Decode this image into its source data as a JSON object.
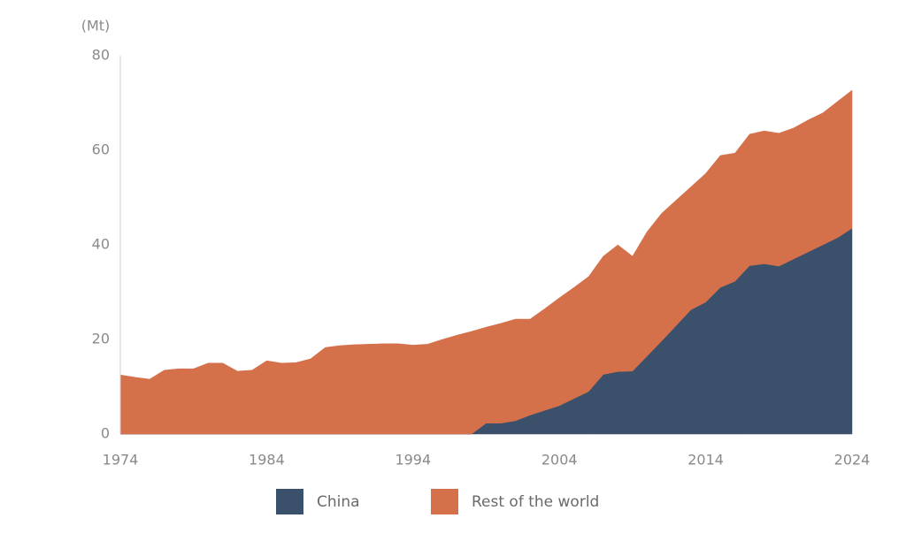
{
  "chart_data": {
    "type": "stacked_area",
    "unit_label": "(Mt)",
    "x": [
      1974,
      1975,
      1976,
      1977,
      1978,
      1979,
      1980,
      1981,
      1982,
      1983,
      1984,
      1985,
      1986,
      1987,
      1988,
      1989,
      1990,
      1991,
      1992,
      1993,
      1994,
      1995,
      1996,
      1997,
      1998,
      1999,
      2000,
      2001,
      2002,
      2003,
      2004,
      2005,
      2006,
      2007,
      2008,
      2009,
      2010,
      2011,
      2012,
      2013,
      2014,
      2015,
      2016,
      2017,
      2018,
      2019,
      2020,
      2021,
      2022,
      2023,
      2024
    ],
    "series": [
      {
        "name": "China",
        "color": "#3a506b",
        "values": [
          0,
          0,
          0,
          0,
          0,
          0,
          0,
          0,
          0,
          0,
          0,
          0,
          0,
          0,
          0,
          0,
          0,
          0,
          0,
          0,
          0,
          0,
          0,
          0,
          0,
          2.3,
          2.3,
          2.8,
          4.0,
          5.0,
          6.0,
          7.5,
          9.0,
          12.6,
          13.2,
          13.3,
          16.5,
          19.7,
          23.0,
          26.3,
          27.9,
          31.0,
          32.3,
          35.6,
          36.0,
          35.5,
          37.0,
          38.5,
          40.0,
          41.5,
          43.5
        ]
      },
      {
        "name": "Rest of the world",
        "color": "#d4714a",
        "values": [
          12.5,
          12.0,
          11.6,
          13.5,
          13.8,
          13.8,
          15.0,
          15.0,
          13.3,
          13.5,
          15.5,
          15.0,
          15.1,
          15.9,
          18.3,
          18.7,
          18.9,
          19.0,
          19.1,
          19.1,
          18.8,
          19.0,
          20.0,
          20.9,
          21.7,
          20.3,
          21.1,
          21.5,
          20.3,
          21.5,
          22.8,
          23.5,
          24.3,
          25.0,
          26.8,
          24.3,
          26.3,
          27.0,
          26.5,
          26.0,
          27.2,
          27.9,
          27.1,
          27.8,
          28.1,
          28.1,
          27.7,
          27.9,
          27.9,
          28.8,
          29.2
        ]
      }
    ],
    "xlim": [
      1974,
      2024
    ],
    "xticks": [
      1974,
      1984,
      1994,
      2004,
      2014,
      2024
    ],
    "ylim": [
      0,
      80
    ],
    "yticks": [
      0,
      20,
      40,
      60,
      80
    ],
    "grid": false
  }
}
